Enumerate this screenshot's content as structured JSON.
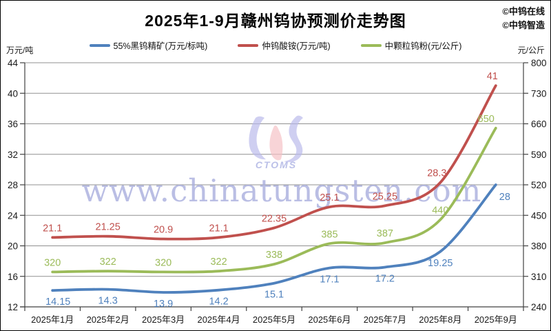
{
  "title": "2025年1-9月赣州钨协预测价走势图",
  "brand": {
    "line1": "©中钨在线",
    "line2": "©中钨智造"
  },
  "watermark": {
    "url_text": "www.chinatungsten.com",
    "logo_text": "CTOMS"
  },
  "colors": {
    "blue": "#4F81BD",
    "red": "#C0504D",
    "green": "#9BBB59",
    "gridline": "#909090",
    "axis": "#404040",
    "tick_text": "#1a1a1a",
    "watermark": "#a9aede",
    "logo_purple": "#b9b9ea",
    "logo_pink": "#f5c0c5",
    "logo_text": "#9ca3dd"
  },
  "chart_data": {
    "type": "line",
    "title": "2025年1-9月赣州钨协预测价走势图",
    "grid": true,
    "legend_position": "top",
    "categories": [
      "2025年1月",
      "2025年2月",
      "2025年3月",
      "2025年4月",
      "2025年5月",
      "2025年6月",
      "2025年7月",
      "2025年8月",
      "2025年9月"
    ],
    "left_axis": {
      "unit": "万元/吨",
      "min": 12,
      "max": 44,
      "ticks": [
        44,
        40,
        36,
        32,
        28,
        24,
        20,
        16,
        12
      ]
    },
    "right_axis": {
      "unit": "元/公斤",
      "min": 240,
      "max": 800,
      "ticks": [
        800,
        730,
        660,
        590,
        520,
        450,
        380,
        310,
        240
      ]
    },
    "series": [
      {
        "name": "55%黑钨精矿(万元/标吨)",
        "axis": "left",
        "color": "#4F81BD",
        "label_pos": "below",
        "values": [
          14.15,
          14.3,
          13.9,
          14.2,
          15.1,
          17.1,
          17.2,
          19.25,
          28
        ]
      },
      {
        "name": "仲钨酸铵(万元/吨)",
        "axis": "left",
        "color": "#C0504D",
        "label_pos": "above",
        "values": [
          21.1,
          21.25,
          20.9,
          21.1,
          22.35,
          25.1,
          25.25,
          28.3,
          41
        ]
      },
      {
        "name": "中颗粒钨粉(元/公斤)",
        "axis": "right",
        "color": "#9BBB59",
        "label_pos": "above",
        "values": [
          320,
          322,
          320,
          322,
          338,
          385,
          387,
          440,
          650
        ]
      }
    ]
  }
}
